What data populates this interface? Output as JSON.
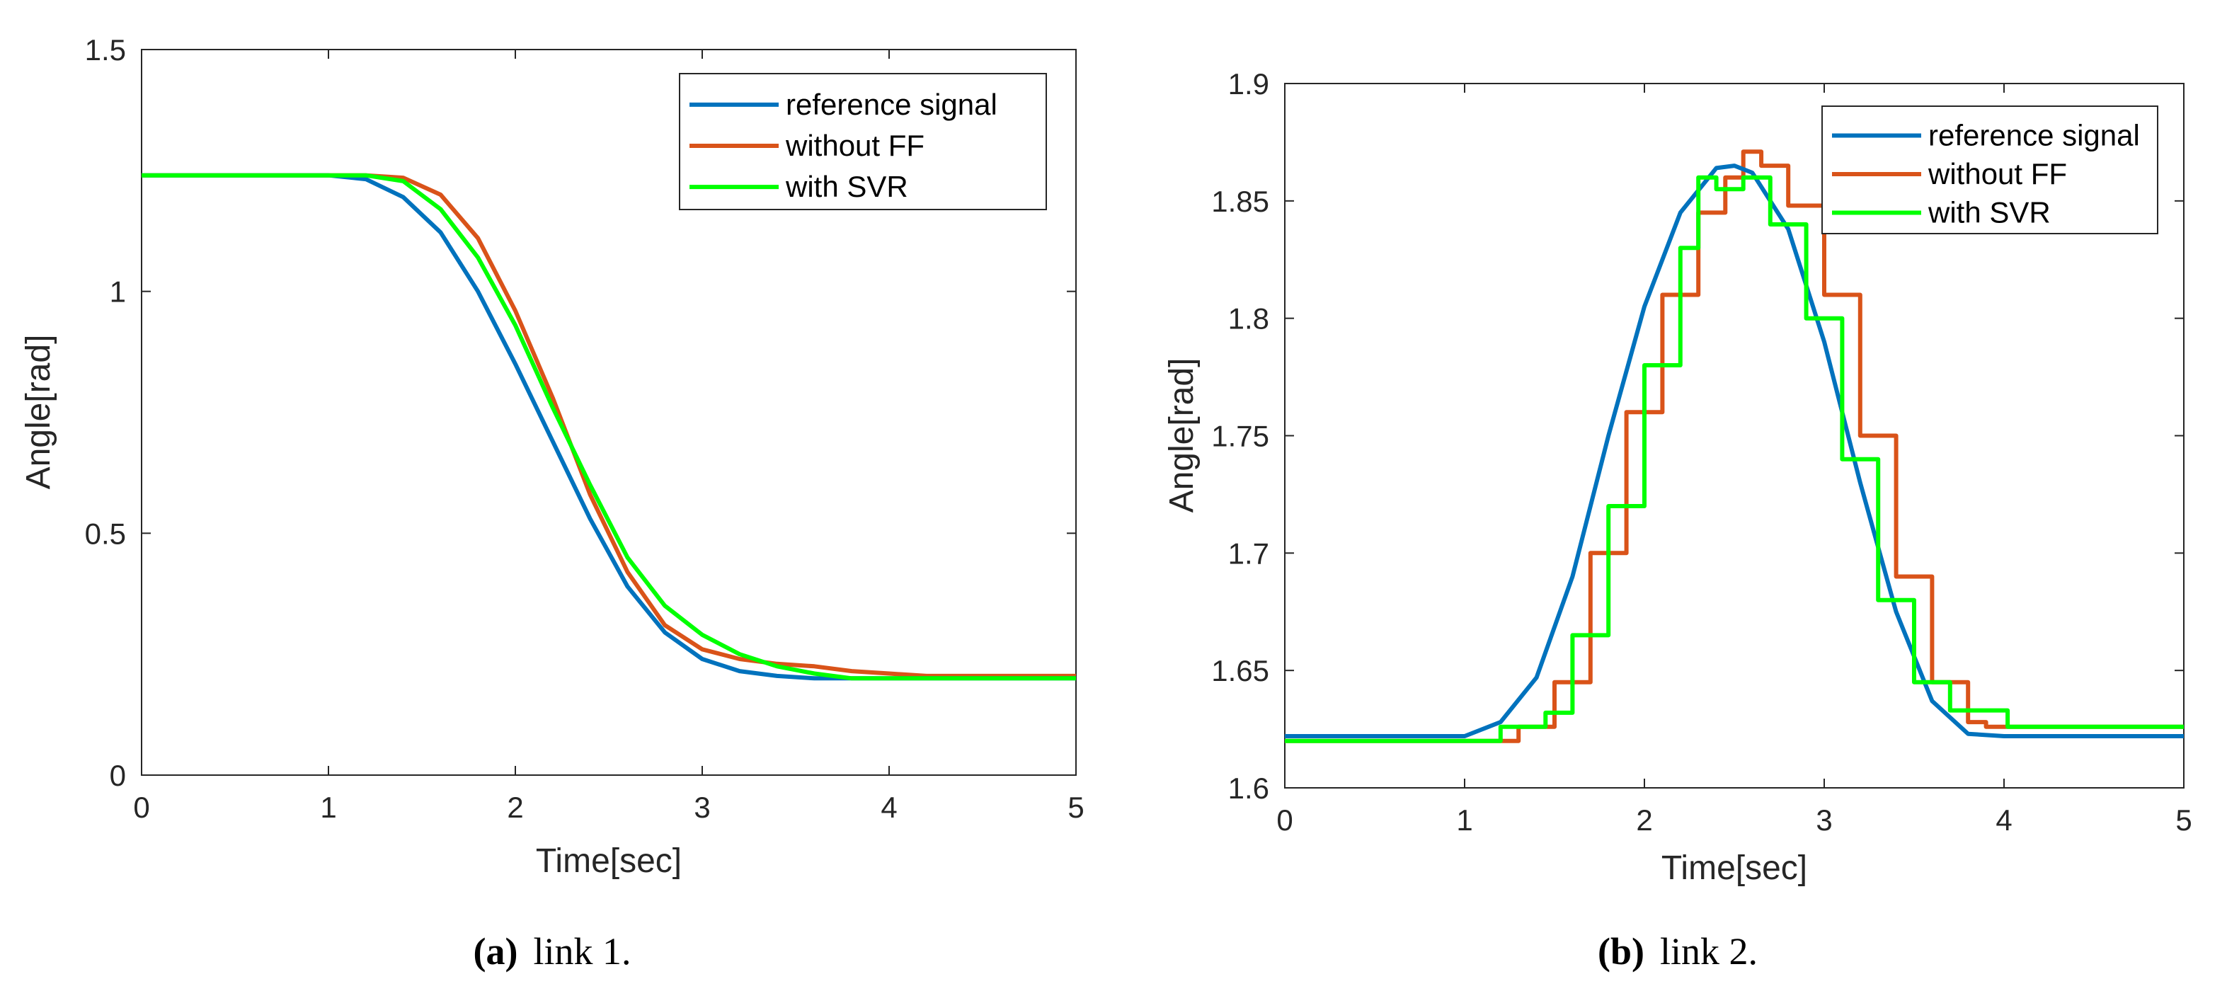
{
  "colors": {
    "reference": "#0072BD",
    "without_ff": "#D95319",
    "with_svr": "#00FF00",
    "axis": "#262626"
  },
  "chart_data": [
    {
      "type": "line",
      "panel_id": "a",
      "caption_letter": "(a)",
      "caption_text": "link 1.",
      "xlabel": "Time[sec]",
      "ylabel": "Angle[rad]",
      "xlim": [
        0,
        5
      ],
      "ylim": [
        0,
        1.5
      ],
      "xticks": [
        0,
        1,
        2,
        3,
        4,
        5
      ],
      "xtick_labels": [
        "0",
        "1",
        "2",
        "3",
        "4",
        "5"
      ],
      "yticks": [
        0,
        0.5,
        1,
        1.5
      ],
      "ytick_labels": [
        "0",
        "0.5",
        "1",
        "1.5"
      ],
      "grid": false,
      "legend_position": "top-right",
      "series": [
        {
          "name": "reference signal",
          "color_key": "reference",
          "x": [
            0,
            1.0,
            1.2,
            1.4,
            1.6,
            1.8,
            2.0,
            2.2,
            2.4,
            2.6,
            2.8,
            3.0,
            3.2,
            3.4,
            3.6,
            3.8,
            4.0,
            5.0
          ],
          "y": [
            1.24,
            1.24,
            1.232,
            1.195,
            1.122,
            1.0,
            0.85,
            0.69,
            0.53,
            0.39,
            0.295,
            0.24,
            0.215,
            0.205,
            0.2,
            0.2,
            0.2,
            0.2
          ]
        },
        {
          "name": "without FF",
          "color_key": "without_ff",
          "x": [
            0,
            1.2,
            1.4,
            1.6,
            1.8,
            2.0,
            2.2,
            2.4,
            2.6,
            2.8,
            3.0,
            3.2,
            3.4,
            3.6,
            3.8,
            4.0,
            4.2,
            5.0
          ],
          "y": [
            1.24,
            1.24,
            1.235,
            1.2,
            1.11,
            0.96,
            0.78,
            0.58,
            0.42,
            0.31,
            0.26,
            0.24,
            0.23,
            0.225,
            0.215,
            0.21,
            0.205,
            0.205
          ]
        },
        {
          "name": "with SVR",
          "color_key": "with_svr",
          "x": [
            0,
            1.2,
            1.4,
            1.6,
            1.8,
            2.0,
            2.2,
            2.4,
            2.6,
            2.8,
            3.0,
            3.2,
            3.4,
            3.6,
            3.8,
            4.0,
            5.0
          ],
          "y": [
            1.24,
            1.24,
            1.228,
            1.17,
            1.07,
            0.93,
            0.76,
            0.6,
            0.45,
            0.35,
            0.29,
            0.25,
            0.225,
            0.21,
            0.2,
            0.2,
            0.2
          ]
        }
      ]
    },
    {
      "type": "line",
      "panel_id": "b",
      "caption_letter": "(b)",
      "caption_text": "link 2.",
      "xlabel": "Time[sec]",
      "ylabel": "Angle[rad]",
      "xlim": [
        0,
        5
      ],
      "ylim": [
        1.6,
        1.9
      ],
      "xticks": [
        0,
        1,
        2,
        3,
        4,
        5
      ],
      "xtick_labels": [
        "0",
        "1",
        "2",
        "3",
        "4",
        "5"
      ],
      "yticks": [
        1.6,
        1.65,
        1.7,
        1.75,
        1.8,
        1.85,
        1.9
      ],
      "ytick_labels": [
        "1.6",
        "1.65",
        "1.7",
        "1.75",
        "1.8",
        "1.85",
        "1.9"
      ],
      "grid": false,
      "legend_position": "top-right",
      "series": [
        {
          "name": "reference signal",
          "color_key": "reference",
          "x": [
            0,
            1.0,
            1.2,
            1.4,
            1.6,
            1.8,
            2.0,
            2.2,
            2.4,
            2.5,
            2.6,
            2.8,
            3.0,
            3.2,
            3.4,
            3.6,
            3.8,
            4.0,
            5.0
          ],
          "y": [
            1.622,
            1.622,
            1.628,
            1.647,
            1.69,
            1.75,
            1.805,
            1.845,
            1.864,
            1.865,
            1.862,
            1.838,
            1.79,
            1.73,
            1.675,
            1.637,
            1.623,
            1.622,
            1.622
          ]
        },
        {
          "name": "without FF",
          "color_key": "without_ff",
          "x": [
            0,
            1.28,
            1.3,
            1.5,
            1.7,
            1.9,
            2.1,
            2.3,
            2.45,
            2.55,
            2.65,
            2.8,
            3.0,
            3.2,
            3.4,
            3.6,
            3.8,
            3.9,
            5.0
          ],
          "y": [
            1.62,
            1.62,
            1.626,
            1.645,
            1.7,
            1.76,
            1.81,
            1.845,
            1.86,
            1.871,
            1.865,
            1.848,
            1.81,
            1.75,
            1.69,
            1.645,
            1.628,
            1.626,
            1.626
          ],
          "style": "step"
        },
        {
          "name": "with SVR",
          "color_key": "with_svr",
          "x": [
            0,
            1.15,
            1.2,
            1.45,
            1.6,
            1.8,
            2.0,
            2.2,
            2.3,
            2.4,
            2.55,
            2.7,
            2.9,
            3.1,
            3.3,
            3.5,
            3.7,
            4.0,
            4.02,
            5.0
          ],
          "y": [
            1.62,
            1.62,
            1.626,
            1.632,
            1.665,
            1.72,
            1.78,
            1.83,
            1.86,
            1.855,
            1.86,
            1.84,
            1.8,
            1.74,
            1.68,
            1.645,
            1.633,
            1.633,
            1.626,
            1.626
          ],
          "style": "step"
        }
      ]
    }
  ]
}
